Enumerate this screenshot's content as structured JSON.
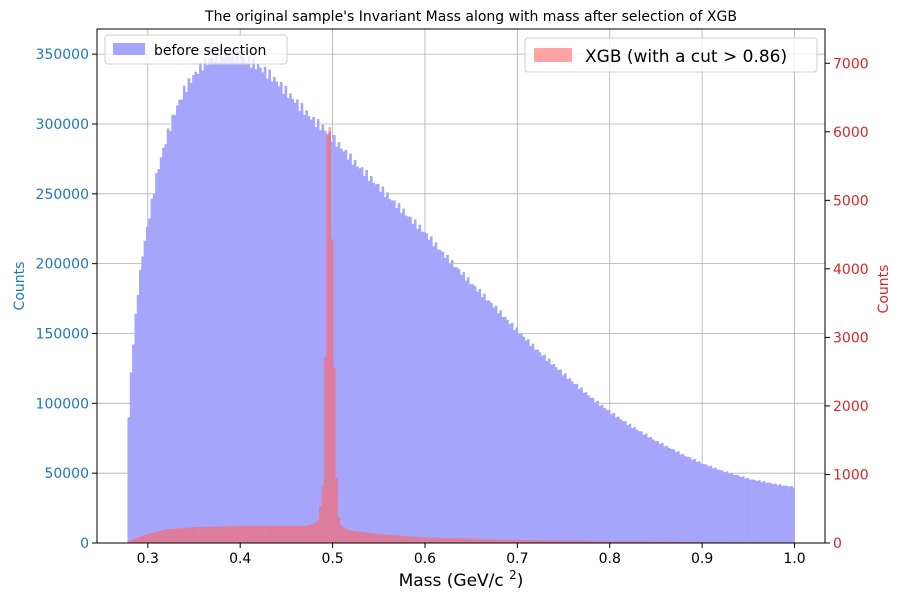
{
  "chart_data": {
    "type": "histogram",
    "title": "The original sample's Invariant Mass along with mass after selection of XGB",
    "xlabel": "Mass (GeV/c²)",
    "xlim": [
      0.245,
      1.033
    ],
    "xticks": [
      "0.3",
      "0.4",
      "0.5",
      "0.6",
      "0.7",
      "0.8",
      "0.9",
      "1.0"
    ],
    "grid": true,
    "left_axis": {
      "ylabel": "Counts",
      "color": "#1f77b4",
      "ylim": [
        0,
        368000
      ],
      "yticks": [
        "0",
        "50000",
        "100000",
        "150000",
        "200000",
        "250000",
        "300000",
        "350000"
      ]
    },
    "right_axis": {
      "ylabel": "Counts",
      "color": "#d62728",
      "ylim": [
        0,
        7500
      ],
      "yticks": [
        "0",
        "1000",
        "2000",
        "3000",
        "4000",
        "5000",
        "6000",
        "7000"
      ]
    },
    "series": [
      {
        "name": "before selection",
        "axis": "left",
        "color": "#a5a5fc",
        "legend_position": "upper left",
        "bin_range": [
          0.278,
          1.0
        ],
        "bin_width": 0.0025,
        "shape_points": {
          "x": [
            0.278,
            0.281,
            0.285,
            0.29,
            0.295,
            0.3,
            0.31,
            0.32,
            0.33,
            0.34,
            0.35,
            0.36,
            0.37,
            0.38,
            0.39,
            0.4,
            0.41,
            0.42,
            0.43,
            0.44,
            0.45,
            0.46,
            0.47,
            0.48,
            0.49,
            0.5,
            0.52,
            0.55,
            0.58,
            0.6,
            0.62,
            0.65,
            0.68,
            0.7,
            0.72,
            0.75,
            0.78,
            0.8,
            0.82,
            0.85,
            0.88,
            0.9,
            0.92,
            0.95,
            0.98,
            1.0
          ],
          "y": [
            72000,
            115000,
            150000,
            185000,
            210000,
            228000,
            265000,
            290000,
            310000,
            325000,
            335000,
            343000,
            347000,
            350000,
            350000,
            348000,
            345000,
            341000,
            336000,
            330000,
            323000,
            316000,
            309000,
            302000,
            297000,
            290000,
            275000,
            255000,
            235000,
            222000,
            207000,
            186000,
            166000,
            152000,
            139000,
            121000,
            104000,
            94000,
            85000,
            73000,
            63000,
            57000,
            52000,
            46000,
            42000,
            40000
          ]
        }
      },
      {
        "name": "XGB (with a cut > 0.86)",
        "axis": "right",
        "color": "#ff6666",
        "opacity": 0.6,
        "legend_position": "upper right",
        "bin_range": [
          0.278,
          1.0
        ],
        "bin_width": 0.0025,
        "shape_points": {
          "x": [
            0.278,
            0.285,
            0.3,
            0.32,
            0.35,
            0.4,
            0.45,
            0.47,
            0.48,
            0.485,
            0.49,
            0.4925,
            0.495,
            0.4975,
            0.5,
            0.5025,
            0.505,
            0.5075,
            0.51,
            0.515,
            0.52,
            0.55,
            0.6,
            0.7,
            0.8,
            0.9,
            1.0
          ],
          "y": [
            20,
            60,
            130,
            200,
            230,
            250,
            250,
            250,
            280,
            350,
            900,
            3500,
            7000,
            5600,
            4000,
            1900,
            550,
            300,
            240,
            200,
            180,
            130,
            80,
            45,
            25,
            15,
            8
          ]
        }
      }
    ]
  }
}
